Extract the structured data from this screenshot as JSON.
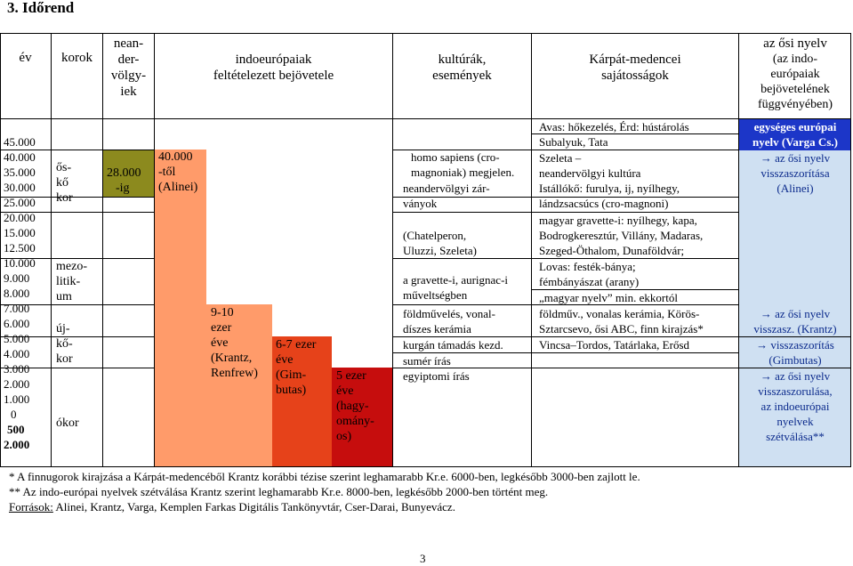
{
  "title": "3. Időrend",
  "headers": {
    "ev": "év",
    "korok": "korok",
    "neandervolgyiek": [
      "nean-",
      "der-",
      "völgy-",
      "iek"
    ],
    "indoeuropaiak": [
      "indoeurópaiak",
      "feltételezett bejövetele"
    ],
    "kulturak": [
      "kultúrák,",
      "események"
    ],
    "karpat": [
      "Kárpát-medencei",
      "sajátosságok"
    ],
    "osi_nyelv": [
      "az ősi nyelv",
      "(az indo-",
      "európaiak",
      "bejövetelének",
      "függvényében)"
    ]
  },
  "years": [
    "45.000",
    "40.000",
    "35.000",
    "30.000",
    "25.000",
    "20.000",
    "15.000",
    "12.500",
    "10.000",
    "9.000",
    "8.000",
    "7.000",
    "6.000",
    "5.000",
    "4.000",
    "3.000",
    "2.000",
    "1.000",
    "0",
    "500",
    "2.000"
  ],
  "korok": {
    "os": [
      "ős-",
      "kő",
      "kor"
    ],
    "mezo": [
      "mezo-",
      "litik-",
      "um"
    ],
    "uj": [
      "új-",
      "kő-",
      "kor"
    ],
    "okor": "ókor"
  },
  "neander_bar": [
    "28.000",
    "-ig"
  ],
  "indo_bars": {
    "alinei": [
      "40.000",
      "-től",
      "(Alinei)"
    ],
    "krantz": [
      "9-10",
      "ezer",
      "éve",
      "(Krantz,",
      "Renfrew)"
    ],
    "gimbutas": [
      "6-7 ezer",
      "éve",
      "(Gim-",
      "butas)"
    ],
    "hagyomanyos": [
      "5 ezer",
      "éve",
      "(hagy-",
      "omány-",
      "os)"
    ]
  },
  "kulturak": {
    "homo": [
      "homo sapiens (cro-",
      "magnoniak) megjelen."
    ],
    "neander": [
      "neandervölgyi zár-",
      "ványok"
    ],
    "chatel": [
      "(Chatelperon,",
      "Uluzzi, Szeleta)"
    ],
    "gravette": [
      "a gravette-i, aurignac-i",
      "műveltségben"
    ],
    "foldmuv": [
      "földművelés, vonal-",
      "díszes kerámia"
    ],
    "kurgan": "kurgán támadás kezd.",
    "sumer": "sumér írás",
    "egyiptomi": "egyiptomi írás"
  },
  "karpat": {
    "avas": "Avas: hőkezelés, Érd: hústárolás",
    "subalyuk": "Subalyuk, Tata",
    "szeleta": [
      "Szeleta –",
      "neandervölgyi kultúra"
    ],
    "istallosko": [
      "Istállókő: furulya, ij, nyílhegy,",
      "lándzsacsúcs (cro-magnoni)"
    ],
    "magyar_gravette": [
      "magyar gravette-i: nyílhegy, kapa,",
      "Bodrogkeresztúr, Villány, Madaras,",
      "Szeged-Öthalom, Dunaföldvár;"
    ],
    "lovas": [
      "Lovas: festék-bánya;",
      "fémbányászat (arany)"
    ],
    "magyar_nyelv": "„magyar nyelv” min. ekkortól",
    "foldmuv": [
      "földműv., vonalas kerámia, Körös-",
      "Sztarcsevo, ősi ABC, finn kirajzás*"
    ],
    "vinca": "Vincsa–Tordos, Tatárlaka, Erősd"
  },
  "osi_nyelv": {
    "varga": [
      "egységes európai",
      "nyelv (Varga Cs.)"
    ],
    "alinei": [
      "→ az ősi nyelv",
      "visszaszorítása",
      "(Alinei)"
    ],
    "krantz": [
      "→ az ősi nyelv",
      "visszasz. (Krantz)"
    ],
    "gimbutas": [
      "→ visszaszorítás",
      "(Gimbutas)"
    ],
    "hagyomanyos": [
      "→ az ősi nyelv",
      "visszaszorulása,",
      "az indoeurópai",
      "nyelvek",
      "szétválása**"
    ]
  },
  "footnotes": [
    "* A finnugorok kirajzása a Kárpát-medencéből Krantz korábbi tézise szerint leghamarabb Kr.e. 6000-ben, legkésőbb 3000-ben zajlott le.",
    "** Az indo-európai nyelvek szétválása Krantz szerint leghamarabb Kr.e. 8000-ben, legkésőbb 2000-ben történt meg."
  ],
  "sources_label": "Források:",
  "sources_text": " Alinei, Krantz, Varga, Kemplen Farkas Digitális Tankönyvtár, Cser-Darai, Bunyevácz.",
  "page_number": "3",
  "colors": {
    "olive": "#8c8a1e",
    "orange": "#ff9b6a",
    "red_orange": "#e6421a",
    "dark_red": "#c60d0d",
    "blue": "#1c36c8",
    "light_blue": "#cfe0f2"
  }
}
